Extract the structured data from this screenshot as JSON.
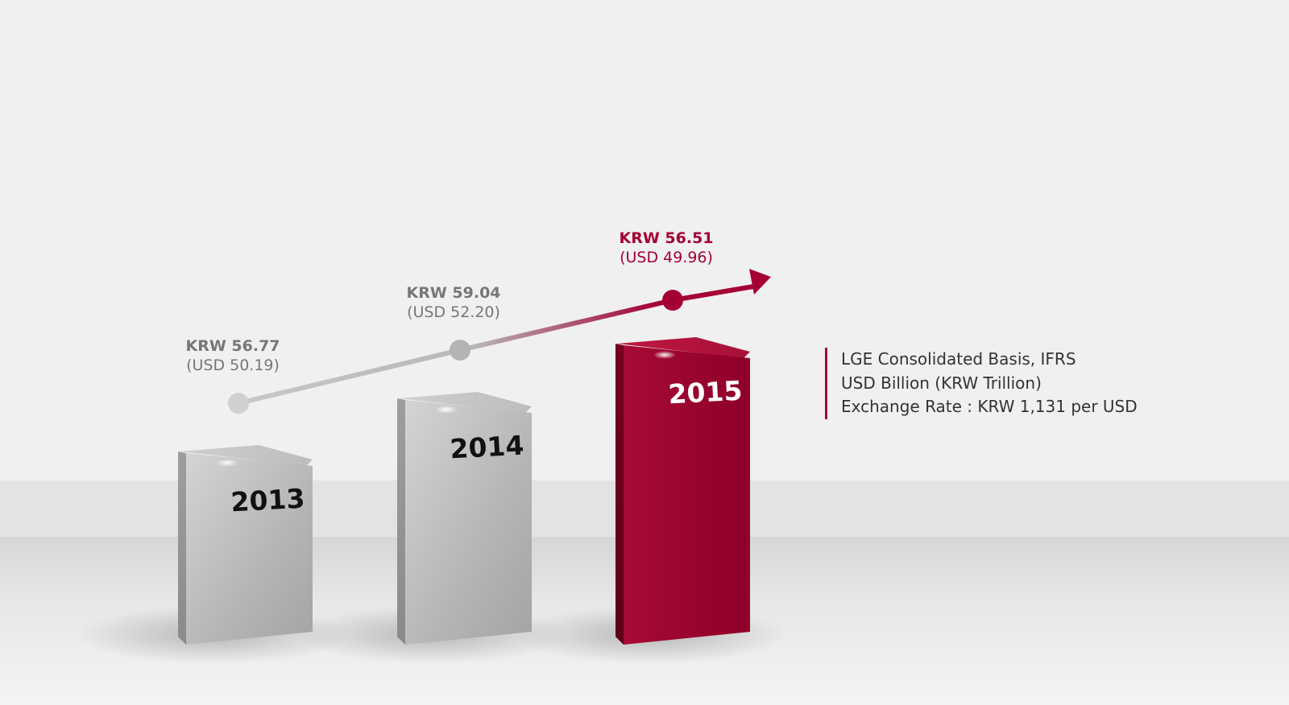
{
  "chart_data": {
    "type": "bar",
    "categories": [
      "2013",
      "2014",
      "2015"
    ],
    "series": [
      {
        "name": "KRW",
        "values": [
          56.77,
          59.04,
          56.51
        ],
        "labels": [
          "KRW 56.77",
          "KRW 59.04",
          "KRW 56.51"
        ]
      },
      {
        "name": "USD",
        "values": [
          50.19,
          52.2,
          49.96
        ],
        "labels": [
          "(USD 50.19)",
          "(USD 52.20)",
          "(USD 49.96)"
        ]
      }
    ],
    "title": "",
    "xlabel": "",
    "ylabel": "",
    "colors": {
      "highlight": "#a50034",
      "neutral_bar": "#b8b8b8",
      "neutral_text": "#777777",
      "trend_start": "#c8c8c8"
    }
  },
  "notes": [
    "LGE Consolidated Basis, IFRS",
    "USD Billion (KRW Trillion)",
    "Exchange Rate : KRW 1,131 per USD"
  ]
}
